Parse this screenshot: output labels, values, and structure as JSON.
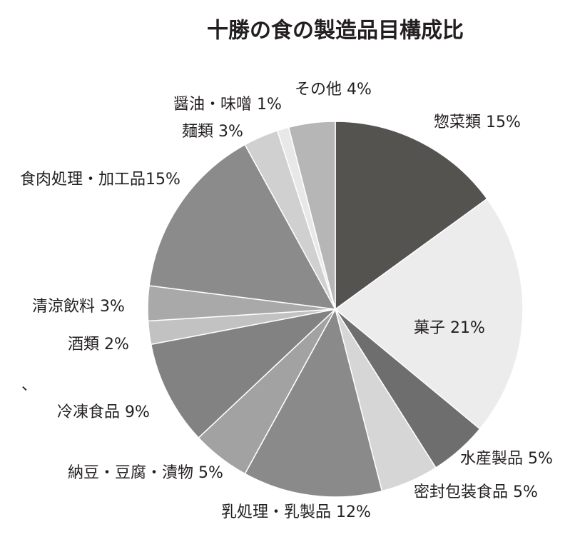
{
  "chart_data": {
    "type": "pie",
    "title": "十勝の食の製造品目構成比",
    "categories": [
      "惣菜類",
      "菓子",
      "水産製品",
      "密封包装食品",
      "乳処理・乳製品",
      "納豆・豆腐・漬物",
      "冷凍食品",
      "酒類",
      "清涼飲料",
      "食肉処理・加工品",
      "麺類",
      "醤油・味噌",
      "その他"
    ],
    "values": [
      15,
      21,
      5,
      5,
      12,
      5,
      9,
      2,
      3,
      15,
      3,
      1,
      4
    ],
    "value_labels": [
      "15%",
      "21%",
      "5%",
      "5%",
      "12%",
      "5%",
      "9%",
      "2%",
      "3%",
      "15%",
      "3%",
      "1%",
      "4%"
    ],
    "colors": [
      "#555350",
      "#ebeceb",
      "#6e6e6e",
      "#d6d6d6",
      "#8a8a8a",
      "#a2a2a2",
      "#828282",
      "#c2c2c2",
      "#a9a9a9",
      "#8b8b8b",
      "#d0d0d0",
      "#e8e8e8",
      "#b6b6b6"
    ],
    "annotation": "、"
  }
}
